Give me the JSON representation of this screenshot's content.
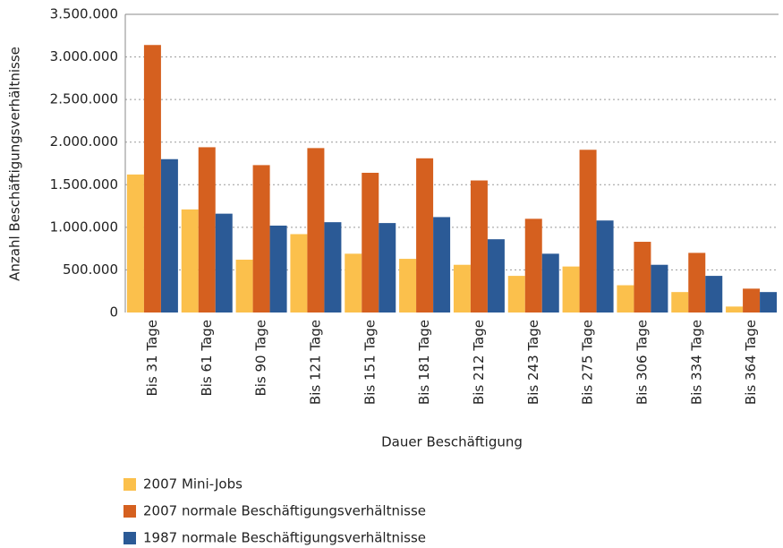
{
  "chart_data": {
    "type": "bar",
    "y_label": "Anzahl Beschäftigungsverhältnisse",
    "x_label": "Dauer Beschäftigung",
    "categories": [
      "Bis 31 Tage",
      "Bis 61 Tage",
      "Bis 90 Tage",
      "Bis 121 Tage",
      "Bis 151 Tage",
      "Bis 181 Tage",
      "Bis 212 Tage",
      "Bis 243 Tage",
      "Bis 275 Tage",
      "Bis 306 Tage",
      "Bis 334 Tage",
      "Bis 364 Tage"
    ],
    "series": [
      {
        "name": "2007 Mini-Jobs",
        "color": "#fbc04c",
        "values": [
          1620000,
          1210000,
          620000,
          920000,
          690000,
          630000,
          560000,
          430000,
          540000,
          320000,
          240000,
          70000
        ]
      },
      {
        "name": "2007 normale Beschäftigungsverhältnisse",
        "color": "#d5601f",
        "values": [
          3140000,
          1940000,
          1730000,
          1930000,
          1640000,
          1810000,
          1550000,
          1100000,
          1910000,
          830000,
          700000,
          280000
        ]
      },
      {
        "name": "1987 normale Beschäftigungsverhältnisse",
        "color": "#2b5a96",
        "values": [
          1800000,
          1160000,
          1020000,
          1060000,
          1050000,
          1120000,
          860000,
          690000,
          1080000,
          560000,
          430000,
          240000
        ]
      }
    ],
    "ylim": [
      0,
      3500000
    ],
    "yticks": [
      0,
      {
        "value": 500000,
        "label": "500.000"
      },
      {
        "value": 1000000,
        "label": "1.000.000"
      },
      {
        "value": 1500000,
        "label": "1.500.000"
      },
      {
        "value": 2000000,
        "label": "2.000.000"
      },
      {
        "value": 2500000,
        "label": "2.500.000"
      },
      {
        "value": 3000000,
        "label": "3.000.000"
      },
      {
        "value": 3500000,
        "label": "3.500.000"
      }
    ],
    "grid": true,
    "legend_position": "bottom-left"
  }
}
